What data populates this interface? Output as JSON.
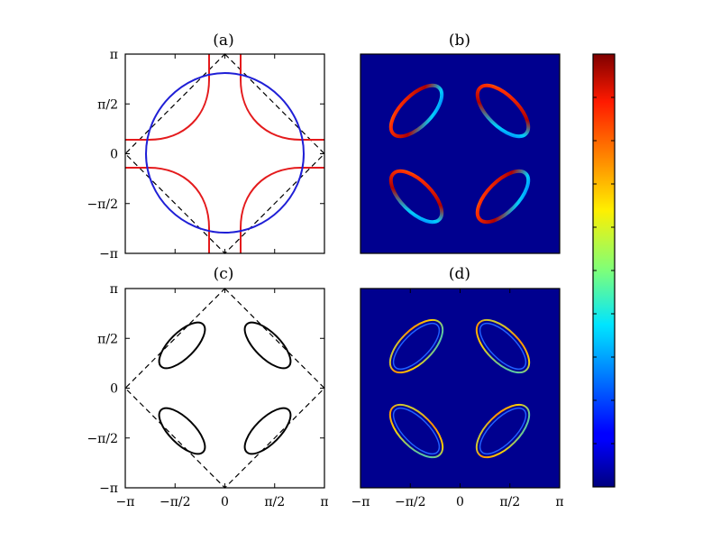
{
  "figure": {
    "background": "#ffffff"
  },
  "chart_data": [
    {
      "id": "a",
      "type": "line",
      "title": "(a)",
      "xlim": [
        -3.1416,
        3.1416
      ],
      "ylim": [
        -3.1416,
        3.1416
      ],
      "yticks": [
        {
          "value": 3.1416,
          "label": "π"
        },
        {
          "value": 1.5708,
          "label": "π/2"
        },
        {
          "value": 0,
          "label": "0"
        },
        {
          "value": -1.5708,
          "label": "−π/2"
        },
        {
          "value": -3.1416,
          "label": "−π"
        }
      ],
      "xticklabels_shown": false,
      "series": [
        {
          "name": "dashed diamond",
          "style": "dashed",
          "color": "#000000"
        },
        {
          "name": "red contours",
          "style": "solid",
          "color": "#e41a1c"
        },
        {
          "name": "blue closed contour",
          "style": "solid",
          "color": "#1f1fd6"
        }
      ]
    },
    {
      "id": "b",
      "type": "heatmap",
      "title": "(b)",
      "xlim": [
        -3.1416,
        3.1416
      ],
      "ylim": [
        -3.1416,
        3.1416
      ],
      "colormap": "jet",
      "background_color": "#00008f",
      "features": "four elliptical rings centered near (±π/2, ±π/2), high intensity on outer arcs"
    },
    {
      "id": "c",
      "type": "line",
      "title": "(c)",
      "xlim": [
        -3.1416,
        3.1416
      ],
      "ylim": [
        -3.1416,
        3.1416
      ],
      "xticks": [
        {
          "value": -3.1416,
          "label": "−π"
        },
        {
          "value": -1.5708,
          "label": "−π/2"
        },
        {
          "value": 0,
          "label": "0"
        },
        {
          "value": 1.5708,
          "label": "π/2"
        },
        {
          "value": 3.1416,
          "label": "π"
        }
      ],
      "yticks": [
        {
          "value": 3.1416,
          "label": "π"
        },
        {
          "value": 1.5708,
          "label": "π/2"
        },
        {
          "value": 0,
          "label": "0"
        },
        {
          "value": -1.5708,
          "label": "−π/2"
        },
        {
          "value": -3.1416,
          "label": "−π"
        }
      ],
      "series": [
        {
          "name": "dashed diamond",
          "style": "dashed",
          "color": "#000000"
        },
        {
          "name": "black pockets",
          "style": "solid",
          "color": "#000000"
        }
      ]
    },
    {
      "id": "d",
      "type": "heatmap",
      "title": "(d)",
      "xlim": [
        -3.1416,
        3.1416
      ],
      "ylim": [
        -3.1416,
        3.1416
      ],
      "colormap": "jet",
      "background_color": "#00008f",
      "xticks": [
        {
          "value": -3.1416,
          "label": "−π"
        },
        {
          "value": -1.5708,
          "label": "−π/2"
        },
        {
          "value": 0,
          "label": "0"
        },
        {
          "value": 1.5708,
          "label": "π/2"
        },
        {
          "value": 3.1416,
          "label": "π"
        }
      ],
      "features": "four elliptical double rings centered near (±π/2, ±π/2)"
    },
    {
      "id": "colorbar",
      "type": "heatmap",
      "colormap": "jet",
      "orientation": "vertical",
      "tick_labels_shown": false
    }
  ]
}
